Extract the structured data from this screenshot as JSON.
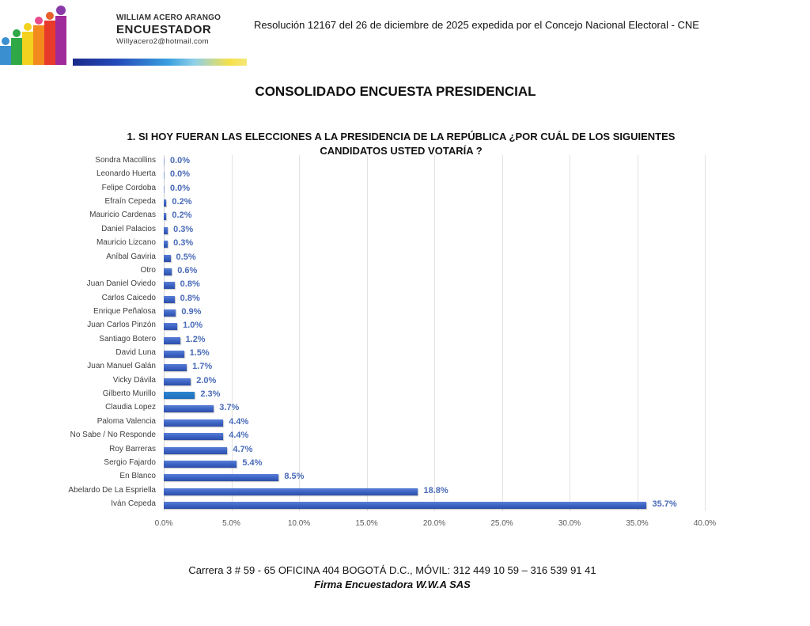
{
  "header": {
    "logo": {
      "name": "WILLIAM ACERO ARANGO",
      "role": "ENCUESTADOR",
      "email": "Willyacero2@hotmail.com"
    },
    "resolution": "Resolución 12167 del 26 de diciembre de 2025 expedida por el Concejo Nacional Electoral - CNE"
  },
  "page_title": "CONSOLIDADO ENCUESTA PRESIDENCIAL",
  "chart_data": {
    "type": "bar",
    "orientation": "horizontal",
    "title_line1": "1. SI HOY FUERAN LAS ELECCIONES A LA PRESIDENCIA DE LA REPÚBLICA ¿POR CUÁL DE LOS SIGUIENTES",
    "title_line2": "CANDIDATOS USTED VOTARÍA ?",
    "title": "1. SI HOY FUERAN LAS ELECCIONES A LA PRESIDENCIA DE LA REPÚBLICA ¿POR CUÁL DE LOS SIGUIENTES CANDIDATOS USTED VOTARÍA ?",
    "xlabel": "",
    "ylabel": "",
    "xlim": [
      0,
      40
    ],
    "grid": true,
    "legend": "none",
    "x_ticks": [
      "0.0%",
      "5.0%",
      "10.0%",
      "15.0%",
      "20.0%",
      "25.0%",
      "30.0%",
      "35.0%",
      "40.0%"
    ],
    "categories": [
      "Sondra Macollins",
      "Leonardo Huerta",
      "Felipe Cordoba",
      "Efraín Cepeda",
      "Mauricio Cardenas",
      "Daniel Palacios",
      "Mauricio Lizcano",
      "Aníbal Gaviria",
      "Otro",
      "Juan Daniel Oviedo",
      "Carlos Caicedo",
      "Enrique Peñalosa",
      "Juan Carlos Pinzón",
      "Santiago Botero",
      "David Luna",
      "Juan Manuel Galán",
      "Vicky Dávila",
      "Gilberto Murillo",
      "Claudia Lopez",
      "Paloma Valencia",
      "No Sabe / No Responde",
      "Roy Barreras",
      "Sergio Fajardo",
      "En Blanco",
      "Abelardo De La Espriella",
      "Iván Cepeda"
    ],
    "values": [
      0.0,
      0.0,
      0.0,
      0.2,
      0.2,
      0.3,
      0.3,
      0.5,
      0.6,
      0.8,
      0.8,
      0.9,
      1.0,
      1.2,
      1.5,
      1.7,
      2.0,
      2.3,
      3.7,
      4.4,
      4.4,
      4.7,
      5.4,
      8.5,
      18.8,
      35.7
    ],
    "value_labels": [
      "0.0%",
      "0.0%",
      "0.0%",
      "0.2%",
      "0.2%",
      "0.3%",
      "0.3%",
      "0.5%",
      "0.6%",
      "0.8%",
      "0.8%",
      "0.9%",
      "1.0%",
      "1.2%",
      "1.5%",
      "1.7%",
      "2.0%",
      "2.3%",
      "3.7%",
      "4.4%",
      "4.4%",
      "4.7%",
      "5.4%",
      "8.5%",
      "18.8%",
      "35.7%"
    ],
    "colors": {
      "bar": "#3c64c4",
      "highlight_bar": "#1a6fbc",
      "value_label": "#4a6bb8",
      "grid": "#e2e2e2"
    }
  },
  "footer": {
    "address": "Carrera  3 # 59 - 65  OFICINA  404 BOGOTÁ D.C.,  MÓVIL: 312 449 10 59 – 316 539 91 41",
    "firm": "Firma Encuestadora W.W.A SAS"
  }
}
